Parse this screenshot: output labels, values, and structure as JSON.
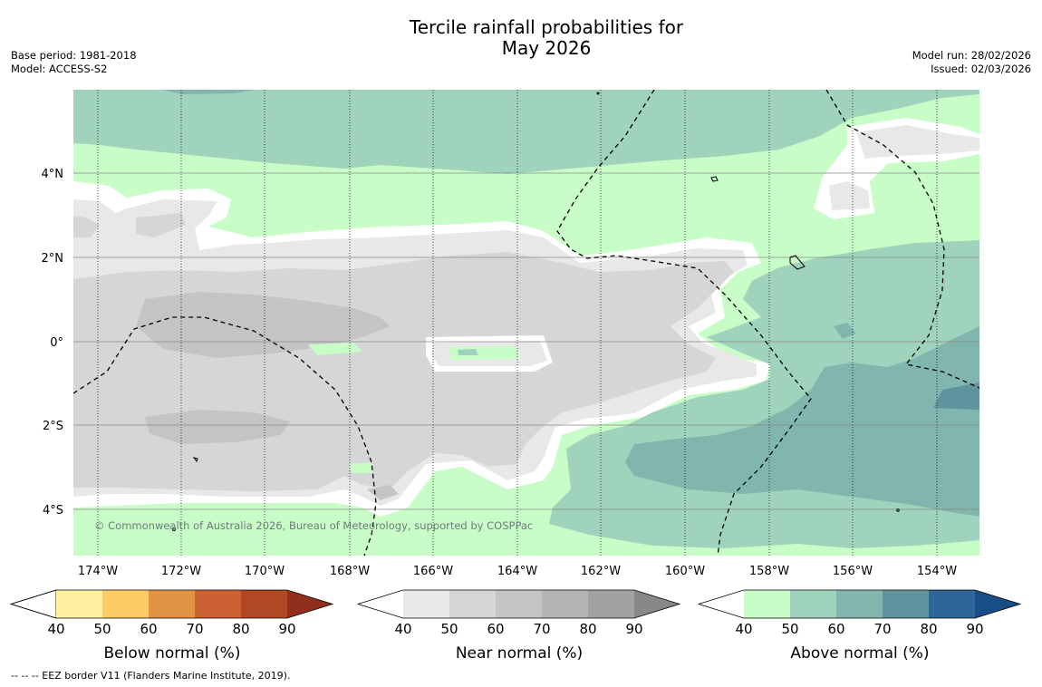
{
  "header": {
    "title_line1": "Tercile rainfall probabilities for",
    "title_line2": "May 2026",
    "base_period": "Base period: 1981-2018",
    "model": "Model: ACCESS-S2",
    "model_run": "Model run: 28/02/2026",
    "issued": "Issued: 02/03/2026"
  },
  "map": {
    "lon_labels": [
      "174°W",
      "172°W",
      "170°W",
      "168°W",
      "166°W",
      "164°W",
      "162°W",
      "160°W",
      "158°W",
      "156°W",
      "154°W"
    ],
    "lat_labels": [
      "4°N",
      "2°N",
      "0°",
      "2°S",
      "4°S"
    ],
    "copyright": "© Commonwealth of Australia 2026, Bureau of Meteorology, supported by COSPPac",
    "colors": {
      "near_normal": [
        "#e8e8e8",
        "#d6d6d6",
        "#c4c4c4",
        "#b4b4b4",
        "#a2a2a2",
        "#888888"
      ],
      "above_normal": [
        "#c8fdc8",
        "#9fd3bc",
        "#80b6ae",
        "#5f949f",
        "#2f6698",
        "#184e88"
      ],
      "below_normal": [
        "#fff0a0",
        "#fecc66",
        "#e19445",
        "#cc6233",
        "#b04826",
        "#922f1c"
      ]
    }
  },
  "colorbars": [
    {
      "label": "Below normal (%)",
      "ticks": [
        "40",
        "50",
        "60",
        "70",
        "80",
        "90"
      ]
    },
    {
      "label": "Near normal (%)",
      "ticks": [
        "40",
        "50",
        "60",
        "70",
        "80",
        "90"
      ]
    },
    {
      "label": "Above normal (%)",
      "ticks": [
        "40",
        "50",
        "60",
        "70",
        "80",
        "90"
      ]
    }
  ],
  "footnote": "--  --  -- EEZ border V11 (Flanders Marine Institute, 2019)."
}
